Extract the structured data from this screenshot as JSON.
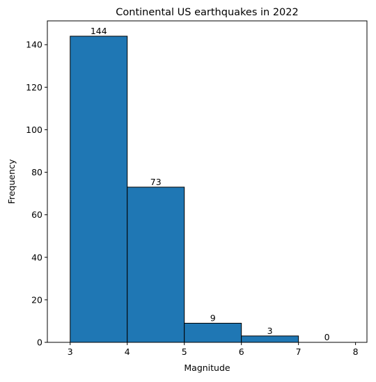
{
  "chart_data": {
    "type": "bar",
    "title": "Continental US earthquakes in 2022",
    "xlabel": "Magnitude",
    "ylabel": "Frequency",
    "bins": [
      {
        "start": 3,
        "end": 4,
        "value": 144,
        "label": "144"
      },
      {
        "start": 4,
        "end": 5,
        "value": 73,
        "label": "73"
      },
      {
        "start": 5,
        "end": 6,
        "value": 9,
        "label": "9"
      },
      {
        "start": 6,
        "end": 7,
        "value": 3,
        "label": "3"
      },
      {
        "start": 7,
        "end": 8,
        "value": 0,
        "label": "0"
      }
    ],
    "xlim": [
      2.6,
      8.2
    ],
    "ylim": [
      0,
      151.2
    ],
    "xticks": [
      3,
      4,
      5,
      6,
      7,
      8
    ],
    "yticks": [
      0,
      20,
      40,
      60,
      80,
      100,
      120,
      140
    ],
    "bar_color": "#1f77b4",
    "edge_color": "#000000",
    "grid": false,
    "legend": "none"
  }
}
